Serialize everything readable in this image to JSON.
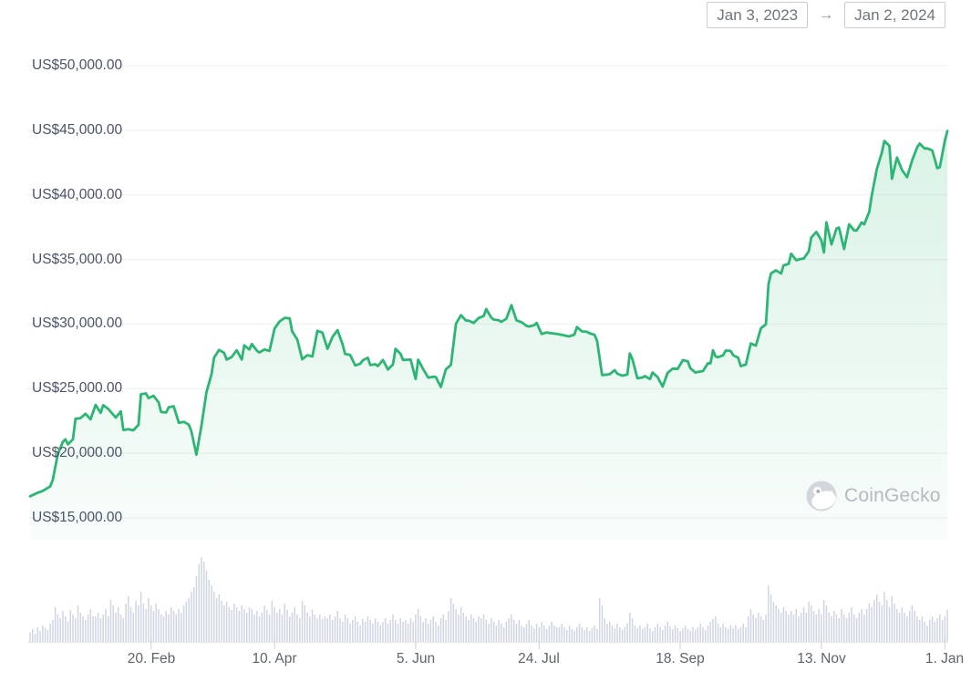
{
  "date_range": {
    "start": "Jan 3, 2023",
    "arrow": "→",
    "end": "Jan 2, 2024"
  },
  "watermark": {
    "label": "CoinGecko"
  },
  "chart_data": {
    "type": "area",
    "legend": "none",
    "grid": "horizontal",
    "y_axis": {
      "currency_prefix": "US$",
      "range": [
        15000,
        50000
      ],
      "tick_values": [
        50000,
        45000,
        40000,
        35000,
        30000,
        25000,
        20000,
        15000
      ],
      "tick_labels": [
        "US$50,000.00",
        "US$45,000.00",
        "US$40,000.00",
        "US$35,000.00",
        "US$30,000.00",
        "US$25,000.00",
        "US$20,000.00",
        "US$15,000.00"
      ]
    },
    "x_axis": {
      "tick_labels": [
        "20. Feb",
        "10. Apr",
        "5. Jun",
        "24. Jul",
        "18. Sep",
        "13. Nov",
        "1. Jan"
      ],
      "tick_days": [
        48,
        97,
        153,
        202,
        258,
        314,
        363
      ],
      "day0": "Jan 3, 2023",
      "day364": "Jan 2, 2024"
    },
    "price_series": {
      "name": "price",
      "points": [
        [
          0,
          16675
        ],
        [
          2,
          16850
        ],
        [
          3,
          16950
        ],
        [
          5,
          17090
        ],
        [
          8,
          17440
        ],
        [
          9,
          17950
        ],
        [
          11,
          19930
        ],
        [
          13,
          20880
        ],
        [
          14,
          21080
        ],
        [
          15,
          20690
        ],
        [
          17,
          21080
        ],
        [
          18,
          22670
        ],
        [
          20,
          22720
        ],
        [
          22,
          23060
        ],
        [
          24,
          22630
        ],
        [
          26,
          23740
        ],
        [
          28,
          23130
        ],
        [
          29,
          23720
        ],
        [
          31,
          23430
        ],
        [
          34,
          22760
        ],
        [
          36,
          23240
        ],
        [
          37,
          21800
        ],
        [
          39,
          21860
        ],
        [
          41,
          21780
        ],
        [
          43,
          22200
        ],
        [
          44,
          24570
        ],
        [
          46,
          24630
        ],
        [
          47,
          24270
        ],
        [
          49,
          24450
        ],
        [
          51,
          23940
        ],
        [
          52,
          23190
        ],
        [
          54,
          23160
        ],
        [
          55,
          23550
        ],
        [
          57,
          23640
        ],
        [
          59,
          22360
        ],
        [
          61,
          22430
        ],
        [
          63,
          22220
        ],
        [
          64,
          21700
        ],
        [
          66,
          19900
        ],
        [
          68,
          22160
        ],
        [
          70,
          24740
        ],
        [
          72,
          26120
        ],
        [
          73,
          27400
        ],
        [
          75,
          28000
        ],
        [
          77,
          27770
        ],
        [
          78,
          27250
        ],
        [
          80,
          27450
        ],
        [
          82,
          27970
        ],
        [
          84,
          27260
        ],
        [
          85,
          28350
        ],
        [
          87,
          28030
        ],
        [
          88,
          28460
        ],
        [
          90,
          27940
        ],
        [
          91,
          27800
        ],
        [
          93,
          28030
        ],
        [
          95,
          27920
        ],
        [
          97,
          29650
        ],
        [
          99,
          30200
        ],
        [
          101,
          30480
        ],
        [
          103,
          30440
        ],
        [
          104,
          29430
        ],
        [
          106,
          28820
        ],
        [
          108,
          27270
        ],
        [
          110,
          27590
        ],
        [
          112,
          27500
        ],
        [
          113,
          28430
        ],
        [
          114,
          29480
        ],
        [
          116,
          29340
        ],
        [
          118,
          28080
        ],
        [
          120,
          29000
        ],
        [
          122,
          29530
        ],
        [
          124,
          28440
        ],
        [
          125,
          27690
        ],
        [
          127,
          27620
        ],
        [
          129,
          26800
        ],
        [
          131,
          26930
        ],
        [
          132,
          27190
        ],
        [
          134,
          27400
        ],
        [
          135,
          26830
        ],
        [
          137,
          26890
        ],
        [
          138,
          26750
        ],
        [
          140,
          27220
        ],
        [
          142,
          26480
        ],
        [
          144,
          26870
        ],
        [
          145,
          28080
        ],
        [
          147,
          27700
        ],
        [
          148,
          27220
        ],
        [
          151,
          27250
        ],
        [
          153,
          25750
        ],
        [
          154,
          27240
        ],
        [
          156,
          26500
        ],
        [
          158,
          25850
        ],
        [
          160,
          25930
        ],
        [
          161,
          25900
        ],
        [
          163,
          25130
        ],
        [
          165,
          26510
        ],
        [
          167,
          26840
        ],
        [
          169,
          30020
        ],
        [
          171,
          30690
        ],
        [
          173,
          30270
        ],
        [
          174,
          30270
        ],
        [
          176,
          30090
        ],
        [
          178,
          30470
        ],
        [
          180,
          30620
        ],
        [
          181,
          31160
        ],
        [
          183,
          30500
        ],
        [
          184,
          30350
        ],
        [
          186,
          30290
        ],
        [
          187,
          30170
        ],
        [
          189,
          30420
        ],
        [
          191,
          31460
        ],
        [
          193,
          30290
        ],
        [
          195,
          30140
        ],
        [
          197,
          29860
        ],
        [
          198,
          29810
        ],
        [
          200,
          29910
        ],
        [
          201,
          30090
        ],
        [
          203,
          29230
        ],
        [
          205,
          29350
        ],
        [
          206,
          29320
        ],
        [
          209,
          29230
        ],
        [
          211,
          29170
        ],
        [
          213,
          29080
        ],
        [
          214,
          29050
        ],
        [
          216,
          29180
        ],
        [
          217,
          29770
        ],
        [
          219,
          29430
        ],
        [
          221,
          29400
        ],
        [
          222,
          29290
        ],
        [
          224,
          29170
        ],
        [
          225,
          28700
        ],
        [
          227,
          26050
        ],
        [
          229,
          26090
        ],
        [
          230,
          26120
        ],
        [
          232,
          26430
        ],
        [
          233,
          26160
        ],
        [
          235,
          26010
        ],
        [
          237,
          26100
        ],
        [
          238,
          27720
        ],
        [
          239,
          27300
        ],
        [
          241,
          25800
        ],
        [
          243,
          25870
        ],
        [
          244,
          25970
        ],
        [
          246,
          25750
        ],
        [
          247,
          26250
        ],
        [
          249,
          25900
        ],
        [
          251,
          25160
        ],
        [
          253,
          26230
        ],
        [
          255,
          26550
        ],
        [
          257,
          26530
        ],
        [
          259,
          27210
        ],
        [
          261,
          27120
        ],
        [
          262,
          26580
        ],
        [
          264,
          26250
        ],
        [
          265,
          26300
        ],
        [
          267,
          26360
        ],
        [
          269,
          26970
        ],
        [
          270,
          26960
        ],
        [
          271,
          27970
        ],
        [
          272,
          27500
        ],
        [
          273,
          27430
        ],
        [
          275,
          27580
        ],
        [
          276,
          27950
        ],
        [
          278,
          27920
        ],
        [
          279,
          27590
        ],
        [
          281,
          27390
        ],
        [
          282,
          26750
        ],
        [
          284,
          26860
        ],
        [
          286,
          28500
        ],
        [
          288,
          28330
        ],
        [
          290,
          29680
        ],
        [
          292,
          29990
        ],
        [
          293,
          33090
        ],
        [
          294,
          33920
        ],
        [
          296,
          34160
        ],
        [
          298,
          33910
        ],
        [
          299,
          34540
        ],
        [
          301,
          34660
        ],
        [
          302,
          35440
        ],
        [
          304,
          34940
        ],
        [
          306,
          35050
        ],
        [
          307,
          35060
        ],
        [
          309,
          35630
        ],
        [
          310,
          36700
        ],
        [
          312,
          37130
        ],
        [
          314,
          36470
        ],
        [
          315,
          35550
        ],
        [
          316,
          37880
        ],
        [
          318,
          36160
        ],
        [
          320,
          37390
        ],
        [
          321,
          37470
        ],
        [
          323,
          35810
        ],
        [
          325,
          37720
        ],
        [
          327,
          37250
        ],
        [
          328,
          37240
        ],
        [
          330,
          37860
        ],
        [
          331,
          37720
        ],
        [
          333,
          38690
        ],
        [
          334,
          39970
        ],
        [
          336,
          41990
        ],
        [
          338,
          43270
        ],
        [
          339,
          44170
        ],
        [
          341,
          43790
        ],
        [
          342,
          41240
        ],
        [
          344,
          42890
        ],
        [
          346,
          41930
        ],
        [
          348,
          41370
        ],
        [
          350,
          42660
        ],
        [
          352,
          43670
        ],
        [
          353,
          43970
        ],
        [
          355,
          43580
        ],
        [
          356,
          43600
        ],
        [
          358,
          43440
        ],
        [
          360,
          42070
        ],
        [
          361,
          42140
        ],
        [
          363,
          44180
        ],
        [
          364,
          44940
        ]
      ]
    },
    "volume_series": {
      "unit": "relative-height",
      "values": [
        10,
        14,
        9,
        16,
        12,
        18,
        15,
        13,
        20,
        24,
        38,
        30,
        26,
        34,
        28,
        22,
        35,
        30,
        26,
        40,
        32,
        28,
        24,
        30,
        36,
        28,
        28,
        32,
        26,
        30,
        36,
        28,
        46,
        40,
        32,
        38,
        30,
        26,
        42,
        50,
        38,
        32,
        45,
        40,
        55,
        42,
        36,
        48,
        40,
        34,
        42,
        36,
        30,
        28,
        34,
        30,
        38,
        34,
        30,
        36,
        32,
        40,
        44,
        48,
        55,
        60,
        72,
        85,
        93,
        88,
        78,
        68,
        62,
        55,
        48,
        52,
        45,
        40,
        44,
        38,
        35,
        42,
        38,
        34,
        40,
        36,
        32,
        38,
        36,
        30,
        34,
        28,
        32,
        40,
        35,
        30,
        45,
        38,
        32,
        36,
        30,
        42,
        35,
        28,
        32,
        38,
        30,
        26,
        45,
        40,
        32,
        28,
        35,
        30,
        26,
        30,
        25,
        28,
        26,
        30,
        24,
        28,
        34,
        26,
        22,
        30,
        26,
        20,
        24,
        28,
        22,
        18,
        25,
        22,
        28,
        24,
        20,
        26,
        22,
        18,
        22,
        26,
        20,
        24,
        30,
        24,
        20,
        26,
        22,
        24,
        20,
        26,
        22,
        30,
        36,
        28,
        22,
        26,
        20,
        24,
        28,
        22,
        18,
        26,
        30,
        24,
        34,
        48,
        42,
        36,
        30,
        38,
        32,
        28,
        24,
        30,
        26,
        22,
        28,
        26,
        30,
        24,
        20,
        26,
        22,
        18,
        24,
        20,
        16,
        22,
        26,
        30,
        24,
        20,
        24,
        18,
        16,
        20,
        24,
        18,
        15,
        20,
        16,
        22,
        18,
        14,
        18,
        22,
        18,
        16,
        16,
        20,
        16,
        13,
        18,
        14,
        12,
        16,
        20,
        16,
        13,
        16,
        12,
        15,
        18,
        14,
        48,
        40,
        26,
        20,
        22,
        18,
        15,
        20,
        16,
        13,
        16,
        20,
        32,
        26,
        18,
        15,
        18,
        14,
        16,
        20,
        15,
        12,
        16,
        20,
        16,
        13,
        18,
        22,
        17,
        14,
        18,
        15,
        12,
        15,
        18,
        14,
        12,
        16,
        13,
        16,
        20,
        16,
        13,
        18,
        22,
        25,
        28,
        20,
        16,
        20,
        16,
        14,
        18,
        15,
        18,
        14,
        16,
        20,
        16,
        28,
        36,
        30,
        26,
        32,
        28,
        24,
        30,
        62,
        52,
        44,
        40,
        36,
        32,
        38,
        34,
        30,
        34,
        30,
        36,
        28,
        32,
        38,
        32,
        44,
        40,
        34,
        30,
        36,
        30,
        46,
        40,
        32,
        28,
        34,
        30,
        26,
        36,
        30,
        26,
        32,
        38,
        30,
        26,
        32,
        36,
        30,
        36,
        42,
        38,
        46,
        52,
        44,
        40,
        55,
        46,
        38,
        50,
        42,
        36,
        32,
        38,
        32,
        28,
        34,
        40,
        34,
        28,
        24,
        28,
        22,
        18,
        24,
        28,
        22,
        26,
        30,
        24,
        28,
        35
      ]
    },
    "colors": {
      "line": "#2bb673",
      "fill_top": "rgba(43,182,115,0.20)",
      "fill_bottom": "rgba(43,182,115,0.03)",
      "gridline": "#eeeeee",
      "volume_bar": "#cfd5e3",
      "axis_baseline": "#e6e8eb",
      "axis_tick": "#c8cedd"
    }
  }
}
